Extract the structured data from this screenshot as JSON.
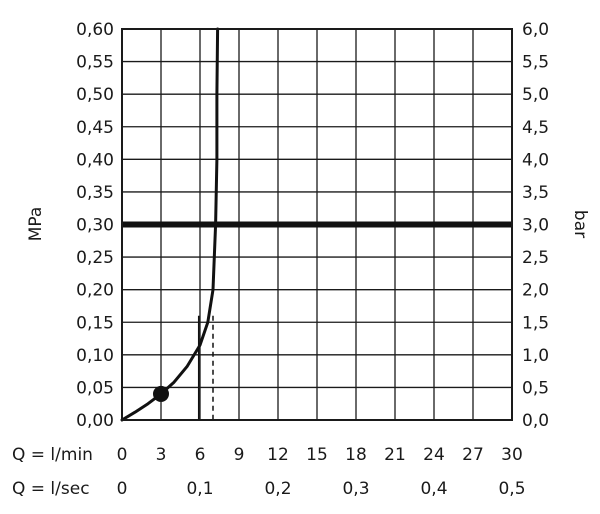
{
  "chart_data": {
    "type": "line",
    "xlabel_primary": "Q = l/min",
    "xlabel_secondary": "Q = l/sec",
    "ylabel_left": "MPa",
    "ylabel_right": "bar",
    "xlim": [
      0,
      30
    ],
    "ylim": [
      0,
      0.6
    ],
    "grid": true,
    "x_ticks": [
      0,
      3,
      6,
      9,
      12,
      15,
      18,
      21,
      24,
      27,
      30
    ],
    "x_tick_labels": [
      "0",
      "3",
      "6",
      "9",
      "12",
      "15",
      "18",
      "21",
      "24",
      "27",
      "30"
    ],
    "x2_ticks": [
      0,
      6,
      12,
      18,
      24,
      30
    ],
    "x2_tick_labels": [
      "0",
      "0,1",
      "0,2",
      "0,3",
      "0,4",
      "0,5"
    ],
    "y_ticks": [
      0,
      0.05,
      0.1,
      0.15,
      0.2,
      0.25,
      0.3,
      0.35,
      0.4,
      0.45,
      0.5,
      0.55,
      0.6
    ],
    "y_tick_labels": [
      "0,00",
      "0,05",
      "0,10",
      "0,15",
      "0,20",
      "0,25",
      "0,30",
      "0,35",
      "0,40",
      "0,45",
      "0,50",
      "0,55",
      "0,60"
    ],
    "y2_tick_labels": [
      "0,0",
      "0,5",
      "1,0",
      "1,5",
      "2,0",
      "2,5",
      "3,0",
      "3,5",
      "4,0",
      "4,5",
      "5,0",
      "5,5",
      "6,0"
    ],
    "series": [
      {
        "style": "solid",
        "x": [
          0,
          1,
          2,
          3,
          4,
          5,
          6,
          6.6,
          7.0,
          7.2,
          7.3,
          7.3,
          7.35
        ],
        "y": [
          0,
          0.012,
          0.025,
          0.04,
          0.058,
          0.082,
          0.115,
          0.15,
          0.2,
          0.3,
          0.4,
          0.5,
          0.6
        ]
      }
    ],
    "reference_lines": {
      "horizontal_thick": {
        "y": 0.3
      },
      "vertical_thin": {
        "x": 5.9,
        "y_top": 0.16
      },
      "vertical_dashed": {
        "x": 7.0,
        "y_top": 0.16
      }
    },
    "marker_point": {
      "x": 3,
      "y": 0.04
    }
  }
}
